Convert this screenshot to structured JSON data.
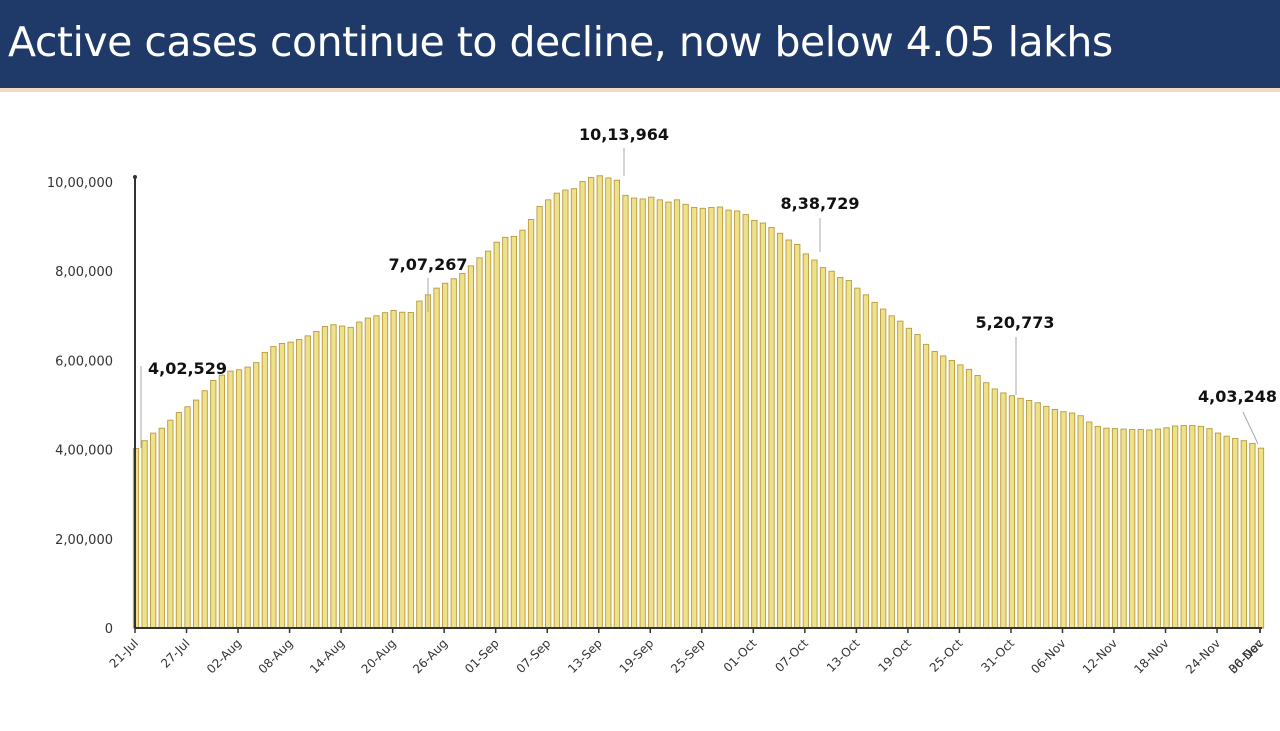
{
  "header": {
    "title": "Active cases continue to decline, now below 4.05 lakhs"
  },
  "colors": {
    "title_bg": "#1f3a68",
    "title_text": "#ffffff",
    "bar_fill": "#efe08a",
    "bar_edge": "#b89a3c",
    "axis": "#333333"
  },
  "chart_data": {
    "type": "bar",
    "title": "Active cases continue to decline, now below 4.05 lakhs",
    "xlabel": "",
    "ylabel": "",
    "ylim": [
      0,
      1000000
    ],
    "grid": false,
    "legend": null,
    "y_ticks": [
      {
        "value": 0,
        "label": "0"
      },
      {
        "value": 200000,
        "label": "2,00,000"
      },
      {
        "value": 400000,
        "label": "4,00,000"
      },
      {
        "value": 600000,
        "label": "6,00,000"
      },
      {
        "value": 800000,
        "label": "8,00,000"
      },
      {
        "value": 1000000,
        "label": "10,00,000"
      }
    ],
    "x_tick_labels": [
      "21-Jul",
      "27-Jul",
      "02-Aug",
      "08-Aug",
      "14-Aug",
      "20-Aug",
      "26-Aug",
      "01-Sep",
      "07-Sep",
      "13-Sep",
      "19-Sep",
      "25-Sep",
      "01-Oct",
      "07-Oct",
      "13-Oct",
      "19-Oct",
      "25-Oct",
      "31-Oct",
      "06-Nov",
      "12-Nov",
      "18-Nov",
      "24-Nov",
      "30-Nov",
      "06-Dec"
    ],
    "x_tick_step_days": 6,
    "start_date": "21-Jul",
    "end_date": "06-Dec",
    "annotations": [
      {
        "label": "4,02,529",
        "date": "21-Jul",
        "value": 402529
      },
      {
        "label": "7,07,267",
        "date": "26-Aug",
        "value": 707267
      },
      {
        "label": "10,13,964",
        "date": "19-Sep",
        "value": 1013964
      },
      {
        "label": "8,38,729",
        "date": "13-Oct",
        "value": 838729
      },
      {
        "label": "5,20,773",
        "date": "06-Nov",
        "value": 520773
      },
      {
        "label": "4,03,248",
        "date": "06-Dec",
        "value": 403248
      }
    ],
    "values": [
      402529,
      420000,
      437000,
      448000,
      466000,
      483000,
      496000,
      511000,
      532000,
      555000,
      567000,
      576000,
      579000,
      585000,
      595000,
      618000,
      631000,
      638000,
      641000,
      647000,
      655000,
      665000,
      676000,
      680000,
      677000,
      674000,
      686000,
      695000,
      700000,
      707000,
      712000,
      708000,
      707267,
      733000,
      747000,
      762000,
      773000,
      783000,
      795000,
      812000,
      830000,
      845000,
      865000,
      876000,
      878000,
      892000,
      916000,
      945000,
      960000,
      975000,
      982000,
      985000,
      1001000,
      1010000,
      1013964,
      1009000,
      1004000,
      970000,
      964000,
      962000,
      966000,
      960000,
      955000,
      960000,
      950000,
      943000,
      941000,
      943000,
      944000,
      937000,
      935000,
      927000,
      914000,
      908000,
      898000,
      885000,
      870000,
      860000,
      838729,
      825000,
      808000,
      800000,
      786000,
      779000,
      762000,
      747000,
      730000,
      715000,
      700000,
      688000,
      672000,
      658000,
      636000,
      620000,
      610000,
      600000,
      590000,
      580000,
      566000,
      550000,
      536000,
      527000,
      520773,
      515000,
      510000,
      505000,
      497000,
      490000,
      485000,
      482000,
      476000,
      462000,
      452000,
      448000,
      447000,
      446000,
      445000,
      445000,
      444000,
      446000,
      449000,
      453000,
      454000,
      454000,
      452000,
      447000,
      437000,
      430000,
      425000,
      420000,
      414000,
      403248
    ]
  }
}
